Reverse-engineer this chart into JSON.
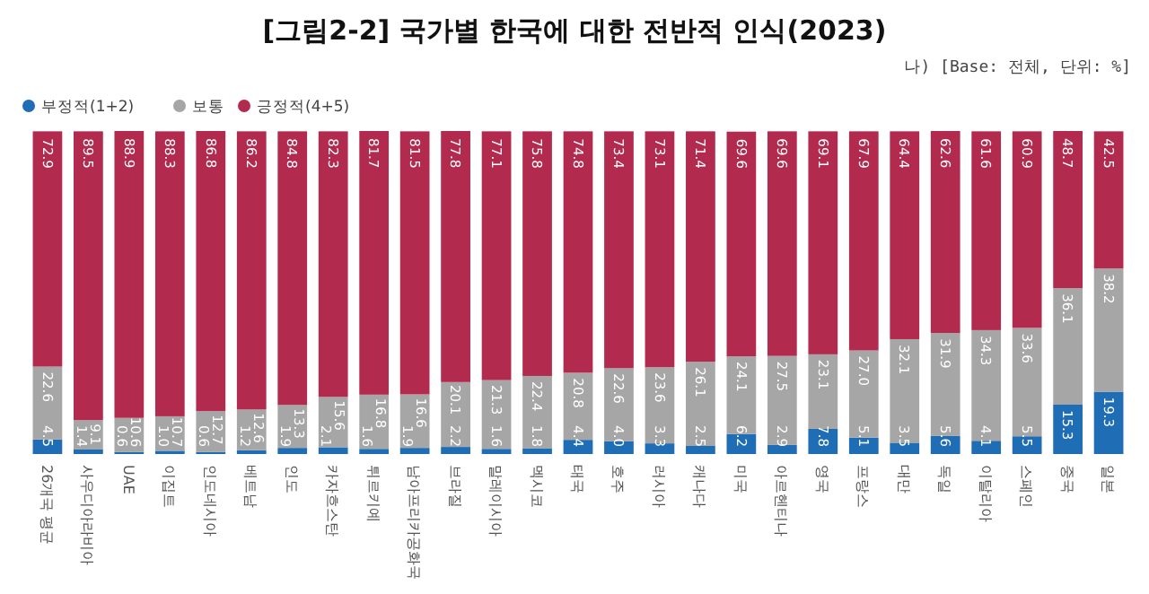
{
  "chart_data": {
    "type": "bar",
    "stacked": true,
    "legend": "top left",
    "title": "[그림2-2] 국가별 한국에 대한 전반적 인식(2023)",
    "subtitle": "나) [Base: 전체, 단위: %]",
    "categories": [
      "26개국 평균",
      "사우디아라비아",
      "UAE",
      "이집트",
      "인도네시아",
      "베트남",
      "인도",
      "카자흐스탄",
      "튀르키예",
      "남아프리카공화국",
      "브라질",
      "말레이시아",
      "멕시코",
      "태국",
      "호주",
      "러시아",
      "캐나다",
      "미국",
      "아르헨티나",
      "영국",
      "프랑스",
      "대만",
      "독일",
      "이탈리아",
      "스페인",
      "중국",
      "일본"
    ],
    "series": [
      {
        "name": "부정적(1+2)",
        "color": "#1f6db5",
        "values": [
          4.5,
          1.4,
          0.6,
          1.0,
          0.6,
          1.2,
          1.9,
          2.1,
          1.6,
          1.9,
          2.2,
          1.6,
          1.8,
          4.4,
          4.0,
          3.3,
          2.5,
          6.2,
          2.9,
          7.8,
          5.1,
          3.5,
          5.6,
          4.1,
          5.5,
          15.3,
          19.3
        ],
        "value_labels": [
          "4.5",
          "1.4",
          "0.6",
          "1.0",
          "0.6",
          "1.2",
          "1.9",
          "2.1",
          "1.6",
          "1.9",
          "2.2",
          "1.6",
          "1.8",
          "4.4",
          "4.0",
          "3.3",
          "2.5",
          "6.2",
          "2.9",
          "7.8",
          "5.1",
          "3.5",
          "5.6",
          "4.1",
          "5.5",
          "15.3",
          "19.3"
        ]
      },
      {
        "name": "보통",
        "color": "#a6a6a6",
        "values": [
          22.6,
          9.1,
          10.6,
          10.7,
          12.7,
          12.6,
          13.3,
          15.6,
          16.8,
          16.6,
          20.1,
          21.3,
          22.4,
          20.8,
          22.6,
          23.6,
          26.1,
          24.1,
          27.5,
          23.1,
          27.0,
          32.1,
          31.9,
          34.3,
          33.6,
          36.1,
          38.2
        ],
        "value_labels": [
          "22.6",
          "9.1",
          "10.6",
          "10.7",
          "12.7",
          "12.6",
          "13.3",
          "15.6",
          "16.8",
          "16.6",
          "20.1",
          "21.3",
          "22.4",
          "20.8",
          "22.6",
          "23.6",
          "26.1",
          "24.1",
          "27.5",
          "23.1",
          "27.0",
          "32.1",
          "31.9",
          "34.3",
          "33.6",
          "36.1",
          "38.2"
        ]
      },
      {
        "name": "긍정적(4+5)",
        "color": "#b22a4e",
        "values": [
          72.9,
          89.5,
          88.9,
          88.3,
          86.8,
          86.2,
          84.8,
          82.3,
          81.7,
          81.5,
          77.8,
          77.1,
          75.8,
          74.8,
          73.4,
          73.1,
          71.4,
          69.6,
          69.6,
          69.1,
          67.9,
          64.4,
          62.6,
          61.6,
          60.9,
          48.7,
          42.5
        ],
        "value_labels": [
          "72.9",
          "89.5",
          "88.9",
          "88.3",
          "86.8",
          "86.2",
          "84.8",
          "82.3",
          "81.7",
          "81.5",
          "77.8",
          "77.1",
          "75.8",
          "74.8",
          "73.4",
          "73.1",
          "71.4",
          "69.6",
          "69.6",
          "69.1",
          "67.9",
          "64.4",
          "62.6",
          "61.6",
          "60.9",
          "48.7",
          "42.5"
        ]
      }
    ]
  }
}
